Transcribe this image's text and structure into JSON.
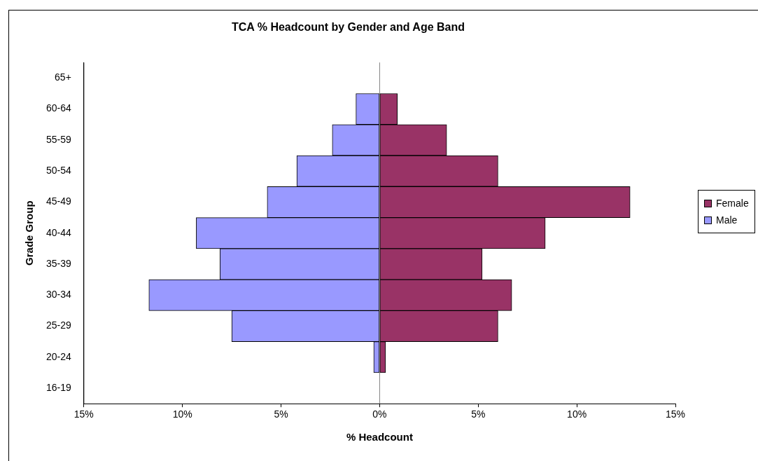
{
  "chart_data": {
    "type": "bar",
    "orientation": "horizontal",
    "stacked": true,
    "title": "TCA % Headcount by Gender and Age Band",
    "xlabel": "% Headcount",
    "ylabel": "Grade Group",
    "categories": [
      "65+",
      "60-64",
      "55-59",
      "50-54",
      "45-49",
      "40-44",
      "35-39",
      "30-34",
      "25-29",
      "20-24",
      "16-19"
    ],
    "series": [
      {
        "name": "Female",
        "color": "#993366",
        "values": [
          0,
          0.9,
          3.4,
          6.0,
          12.7,
          8.4,
          5.2,
          6.7,
          6.0,
          0.3,
          0
        ]
      },
      {
        "name": "Male",
        "color": "#9999ff",
        "values": [
          0,
          -1.2,
          -2.4,
          -4.2,
          -5.7,
          -9.3,
          -8.1,
          -11.7,
          -7.5,
          -0.3,
          0
        ]
      }
    ],
    "xlim": [
      -15,
      15
    ],
    "xticks": [
      {
        "value": -15,
        "label": "15%"
      },
      {
        "value": -10,
        "label": "10%"
      },
      {
        "value": -5,
        "label": "5%"
      },
      {
        "value": 0,
        "label": "0%"
      },
      {
        "value": 5,
        "label": "5%"
      },
      {
        "value": 10,
        "label": "10%"
      },
      {
        "value": 15,
        "label": "15%"
      }
    ],
    "ref_lines": [
      {
        "axis": "x",
        "value": 0,
        "color": "#808080"
      }
    ],
    "grid": false,
    "legend": "right"
  }
}
